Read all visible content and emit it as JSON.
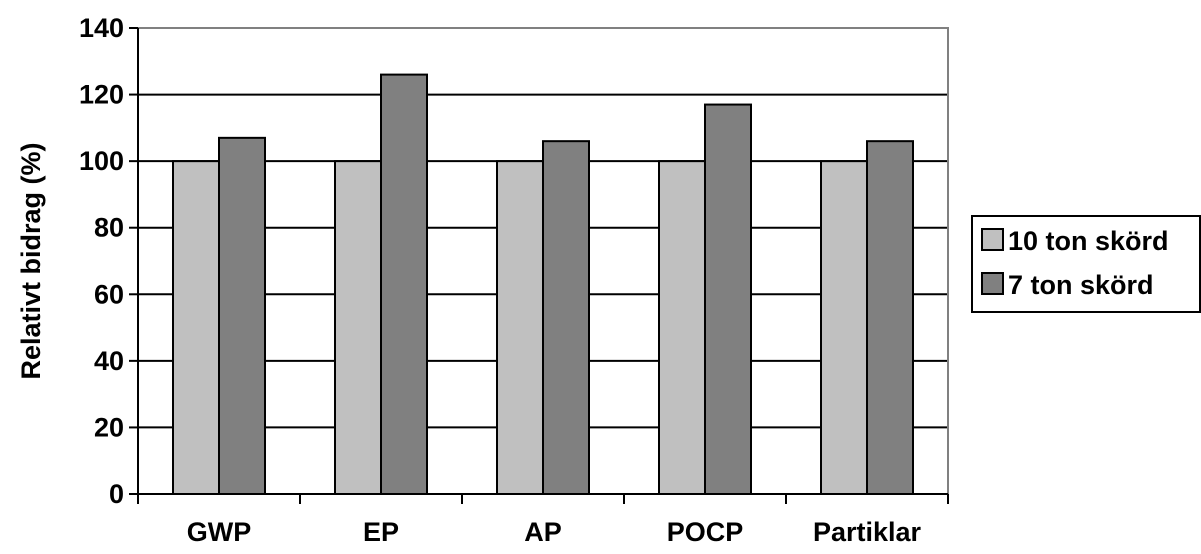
{
  "chart_data": {
    "type": "bar",
    "title": "",
    "xlabel": "",
    "ylabel": "Relativt bidrag (%)",
    "categories": [
      "GWP",
      "EP",
      "AP",
      "POCP",
      "Partiklar"
    ],
    "series": [
      {
        "name": "10 ton skörd",
        "color": "#c0c0c0",
        "values": [
          100,
          100,
          100,
          100,
          100
        ]
      },
      {
        "name": "7 ton skörd",
        "color": "#808080",
        "values": [
          107,
          126,
          106,
          117,
          106
        ]
      }
    ],
    "ylim": [
      0,
      140
    ],
    "yticks": [
      "0",
      "20",
      "40",
      "60",
      "80",
      "100",
      "120",
      "140"
    ],
    "grid": true,
    "legend": "right"
  }
}
